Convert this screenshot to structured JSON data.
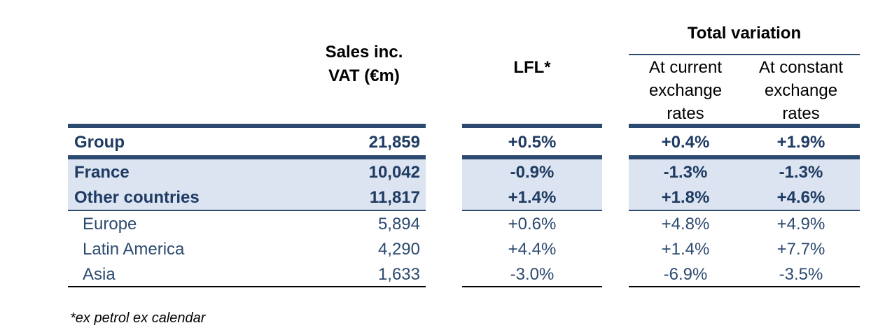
{
  "header": {
    "sales": [
      "Sales inc.",
      "VAT (€m)"
    ],
    "lfl": "LFL*",
    "total_variation": "Total variation",
    "current": [
      "At current",
      "exchange",
      "rates"
    ],
    "constant": [
      "At constant",
      "exchange",
      "rates"
    ]
  },
  "rows": [
    {
      "label": "Group",
      "sales": "21,859",
      "lfl": "+0.5%",
      "current": "+0.4%",
      "constant": "+1.9%"
    },
    {
      "label": "France",
      "sales": "10,042",
      "lfl": "-0.9%",
      "current": "-1.3%",
      "constant": "-1.3%"
    },
    {
      "label": "Other countries",
      "sales": "11,817",
      "lfl": "+1.4%",
      "current": "+1.8%",
      "constant": "+4.6%"
    },
    {
      "label": "Europe",
      "sales": "5,894",
      "lfl": "+0.6%",
      "current": "+4.8%",
      "constant": "+4.9%"
    },
    {
      "label": "Latin America",
      "sales": "4,290",
      "lfl": "+4.4%",
      "current": "+1.4%",
      "constant": "+7.7%"
    },
    {
      "label": "Asia",
      "sales": "1,633",
      "lfl": "-3.0%",
      "current": "-6.9%",
      "constant": "-3.5%"
    }
  ],
  "footnote": "*ex petrol ex calendar"
}
